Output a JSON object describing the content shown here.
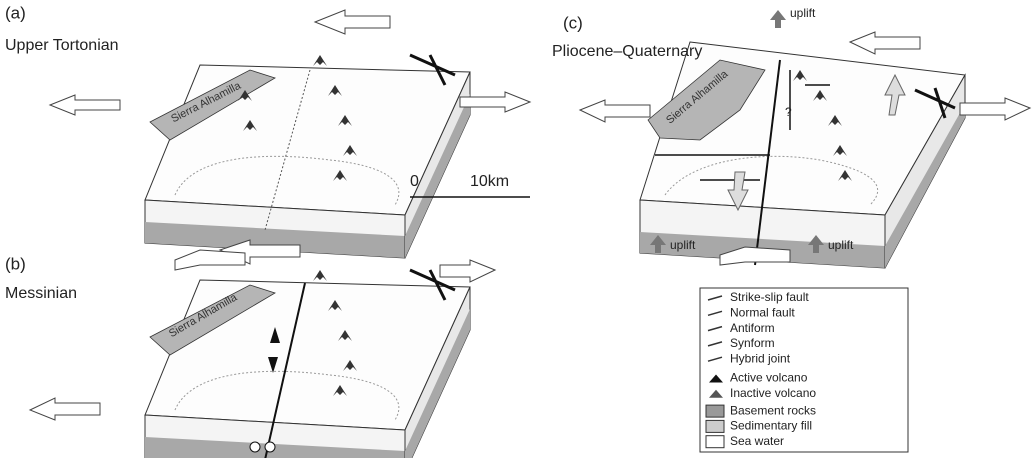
{
  "panels": [
    {
      "label": "(a)",
      "title": "Upper Tortonian",
      "range_label": "Sierra Alhamilla"
    },
    {
      "label": "(b)",
      "title": "Messinian",
      "range_label": "Sierra Alhamilla"
    },
    {
      "label": "(c)",
      "title": "Pliocene–Quaternary",
      "range_label": "Sierra Alhamilla"
    }
  ],
  "scale_bar": {
    "start": "0",
    "end": "10km"
  },
  "panel_c_annotations": {
    "uplift_labels": [
      "uplift",
      "uplift",
      "uplift"
    ],
    "question_mark": "?"
  },
  "legend": {
    "items": [
      "Strike-slip fault",
      "Normal fault",
      "Antiform",
      "Synform",
      "Hybrid joint",
      "Active volcano",
      "Inactive volcano",
      "Basement rocks",
      "Sedimentary fill",
      "Sea water"
    ]
  }
}
